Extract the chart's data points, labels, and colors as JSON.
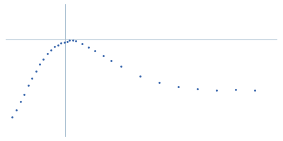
{
  "dot_color": "#2e5ea8",
  "line_color": "#a8bfd0",
  "background_color": "#ffffff",
  "dot_size": 4,
  "vline_x": 0.185,
  "hline_y": 0.5,
  "x_data": [
    0.02,
    0.033,
    0.046,
    0.058,
    0.07,
    0.083,
    0.095,
    0.107,
    0.118,
    0.13,
    0.142,
    0.153,
    0.163,
    0.173,
    0.183,
    0.193,
    0.2,
    0.21,
    0.22,
    0.24,
    0.26,
    0.28,
    0.305,
    0.33,
    0.36,
    0.42,
    0.48,
    0.54,
    0.6,
    0.66,
    0.72,
    0.78
  ],
  "y_data": [
    0.06,
    0.1,
    0.15,
    0.19,
    0.24,
    0.28,
    0.32,
    0.36,
    0.39,
    0.42,
    0.44,
    0.46,
    0.47,
    0.48,
    0.485,
    0.49,
    0.495,
    0.495,
    0.492,
    0.475,
    0.455,
    0.435,
    0.41,
    0.38,
    0.35,
    0.295,
    0.258,
    0.235,
    0.222,
    0.215,
    0.218,
    0.215
  ],
  "xlim": [
    0.0,
    0.85
  ],
  "ylim": [
    -0.05,
    0.7
  ],
  "figsize": [
    4.0,
    2.0
  ],
  "dpi": 100
}
